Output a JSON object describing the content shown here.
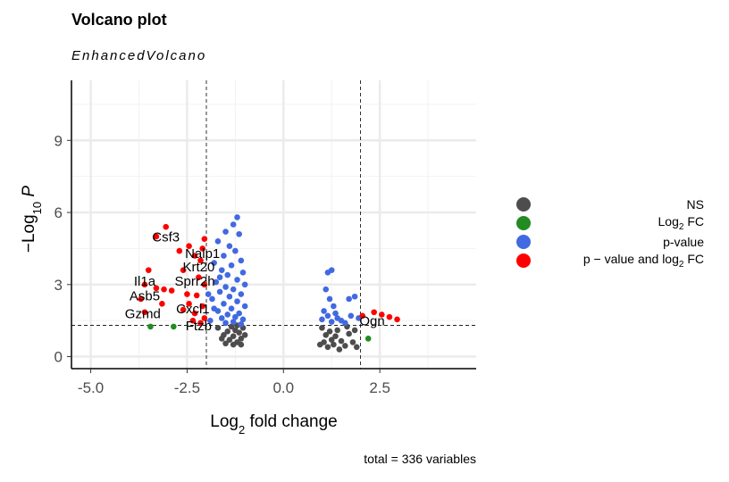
{
  "title": "Volcano plot",
  "subtitle": "EnhancedVolcano",
  "caption": "total = 336 variables",
  "chart_data": {
    "type": "scatter",
    "xlabel": "Log2 fold change",
    "ylabel": "−Log10 P",
    "xlim": [
      -5.5,
      5.0
    ],
    "ylim": [
      -0.5,
      11.5
    ],
    "x_ticks": [
      -5.0,
      -2.5,
      0.0,
      2.5
    ],
    "x_tick_labels": [
      "-5.0",
      "-2.5",
      "0.0",
      "2.5"
    ],
    "y_ticks": [
      0,
      3,
      6,
      9
    ],
    "y_tick_labels": [
      "0",
      "3",
      "6",
      "9"
    ],
    "fc_cutoff": 2,
    "p_cutoff_neglog10": 1.3,
    "legend_position": "right",
    "grid": true,
    "legend": [
      {
        "key": "NS",
        "label_main": "NS",
        "label_sub": "",
        "label_tail": "",
        "color": "#4d4d4d"
      },
      {
        "key": "Log2 FC",
        "label_main": "Log",
        "label_sub": "2",
        "label_tail": " FC",
        "color": "#228b22"
      },
      {
        "key": "p-value",
        "label_main": "p-value",
        "label_sub": "",
        "label_tail": "",
        "color": "#4169e1"
      },
      {
        "key": "p - value and log2 FC",
        "label_main": "p − value and log",
        "label_sub": "2",
        "label_tail": " FC",
        "color": "#ff0000"
      }
    ],
    "series": [
      {
        "name": "NS",
        "color": "#4d4d4d",
        "points": [
          [
            -1.7,
            1.2
          ],
          [
            -1.55,
            0.9
          ],
          [
            -1.45,
            1.05
          ],
          [
            -1.4,
            0.7
          ],
          [
            -1.35,
            1.25
          ],
          [
            -1.3,
            0.85
          ],
          [
            -1.25,
            1.1
          ],
          [
            -1.2,
            0.6
          ],
          [
            -1.15,
            1.0
          ],
          [
            -1.1,
            0.75
          ],
          [
            -1.05,
            1.2
          ],
          [
            -1.0,
            0.9
          ],
          [
            -1.5,
            0.55
          ],
          [
            -1.3,
            0.5
          ],
          [
            -1.1,
            0.5
          ],
          [
            -1.6,
            0.75
          ],
          [
            -1.2,
            1.3
          ],
          [
            1.0,
            1.2
          ],
          [
            1.05,
            0.6
          ],
          [
            1.1,
            0.9
          ],
          [
            1.15,
            0.4
          ],
          [
            1.2,
            1.05
          ],
          [
            1.25,
            0.7
          ],
          [
            1.3,
            0.5
          ],
          [
            1.35,
            0.85
          ],
          [
            1.4,
            1.1
          ],
          [
            1.5,
            0.65
          ],
          [
            1.6,
            0.45
          ],
          [
            1.7,
            0.95
          ],
          [
            1.8,
            0.6
          ],
          [
            1.9,
            0.4
          ],
          [
            0.95,
            0.5
          ],
          [
            1.45,
            0.3
          ],
          [
            1.65,
            1.25
          ],
          [
            1.85,
            1.1
          ]
        ]
      },
      {
        "name": "Log2 FC",
        "color": "#228b22",
        "points": [
          [
            -3.45,
            1.25
          ],
          [
            -2.85,
            1.25
          ],
          [
            2.2,
            0.75
          ]
        ]
      },
      {
        "name": "p-value",
        "color": "#4169e1",
        "points": [
          [
            -1.2,
            5.8
          ],
          [
            -1.3,
            5.5
          ],
          [
            -1.15,
            5.1
          ],
          [
            -1.5,
            5.2
          ],
          [
            -1.4,
            4.6
          ],
          [
            -1.25,
            4.4
          ],
          [
            -1.7,
            4.8
          ],
          [
            -1.55,
            4.2
          ],
          [
            -1.1,
            4.0
          ],
          [
            -1.8,
            3.9
          ],
          [
            -1.35,
            3.8
          ],
          [
            -1.6,
            3.6
          ],
          [
            -1.05,
            3.5
          ],
          [
            -1.45,
            3.4
          ],
          [
            -1.2,
            3.2
          ],
          [
            -1.75,
            3.1
          ],
          [
            -1.0,
            3.0
          ],
          [
            -1.5,
            2.9
          ],
          [
            -1.3,
            2.8
          ],
          [
            -1.65,
            2.7
          ],
          [
            -1.1,
            2.6
          ],
          [
            -1.4,
            2.5
          ],
          [
            -1.85,
            2.4
          ],
          [
            -1.2,
            2.3
          ],
          [
            -1.55,
            2.2
          ],
          [
            -1.0,
            2.1
          ],
          [
            -1.35,
            2.0
          ],
          [
            -1.7,
            1.9
          ],
          [
            -1.15,
            1.8
          ],
          [
            -1.45,
            1.75
          ],
          [
            -1.25,
            1.65
          ],
          [
            -1.6,
            1.6
          ],
          [
            -1.05,
            1.55
          ],
          [
            -1.9,
            1.5
          ],
          [
            -1.3,
            1.45
          ],
          [
            -1.5,
            1.4
          ],
          [
            -1.1,
            1.35
          ],
          [
            -1.8,
            2.0
          ],
          [
            -1.95,
            2.6
          ],
          [
            -1.65,
            3.3
          ],
          [
            1.15,
            3.5
          ],
          [
            1.25,
            3.6
          ],
          [
            1.1,
            2.8
          ],
          [
            1.2,
            2.4
          ],
          [
            1.3,
            2.1
          ],
          [
            1.05,
            1.9
          ],
          [
            1.35,
            1.8
          ],
          [
            1.15,
            1.7
          ],
          [
            1.4,
            1.6
          ],
          [
            1.0,
            1.55
          ],
          [
            1.5,
            1.5
          ],
          [
            1.25,
            1.45
          ],
          [
            1.6,
            1.4
          ],
          [
            1.75,
            1.7
          ],
          [
            1.85,
            2.5
          ],
          [
            1.95,
            1.6
          ],
          [
            1.7,
            2.4
          ]
        ]
      },
      {
        "name": "p - value and log2 FC",
        "color": "#ff0000",
        "points": [
          [
            -3.05,
            5.4
          ],
          [
            -3.3,
            5.0
          ],
          [
            -2.7,
            4.4
          ],
          [
            -2.45,
            4.6
          ],
          [
            -2.05,
            4.9
          ],
          [
            -2.1,
            4.5
          ],
          [
            -2.3,
            4.2
          ],
          [
            -2.15,
            4.0
          ],
          [
            -3.5,
            3.6
          ],
          [
            -2.6,
            3.6
          ],
          [
            -2.2,
            3.3
          ],
          [
            -2.05,
            3.0
          ],
          [
            -3.6,
            3.0
          ],
          [
            -3.3,
            2.85
          ],
          [
            -3.1,
            2.8
          ],
          [
            -2.9,
            2.75
          ],
          [
            -2.5,
            2.6
          ],
          [
            -2.25,
            2.55
          ],
          [
            -3.7,
            2.4
          ],
          [
            -3.15,
            2.2
          ],
          [
            -2.45,
            2.2
          ],
          [
            -2.1,
            2.1
          ],
          [
            -2.6,
            1.95
          ],
          [
            -3.6,
            1.85
          ],
          [
            -2.3,
            1.8
          ],
          [
            -2.05,
            1.6
          ],
          [
            -2.35,
            1.5
          ],
          [
            -2.15,
            1.4
          ],
          [
            2.05,
            1.7
          ],
          [
            2.35,
            1.85
          ],
          [
            2.55,
            1.75
          ],
          [
            2.75,
            1.65
          ],
          [
            2.95,
            1.55
          ]
        ]
      }
    ],
    "labels": [
      {
        "text": "Csf3",
        "x": -3.05,
        "y": 4.8
      },
      {
        "text": "Nalp1",
        "x": -2.1,
        "y": 4.1
      },
      {
        "text": "Krt20",
        "x": -2.2,
        "y": 3.55
      },
      {
        "text": "Il1a",
        "x": -3.6,
        "y": 2.95
      },
      {
        "text": "Sprr2h",
        "x": -2.3,
        "y": 2.95
      },
      {
        "text": "Asb5",
        "x": -3.6,
        "y": 2.35
      },
      {
        "text": "Gzmd",
        "x": -3.65,
        "y": 1.6
      },
      {
        "text": "Cxcl1",
        "x": -2.35,
        "y": 1.8
      },
      {
        "text": "Ftzb",
        "x": -2.2,
        "y": 1.1
      },
      {
        "text": "Ogn",
        "x": 2.3,
        "y": 1.3
      }
    ]
  }
}
